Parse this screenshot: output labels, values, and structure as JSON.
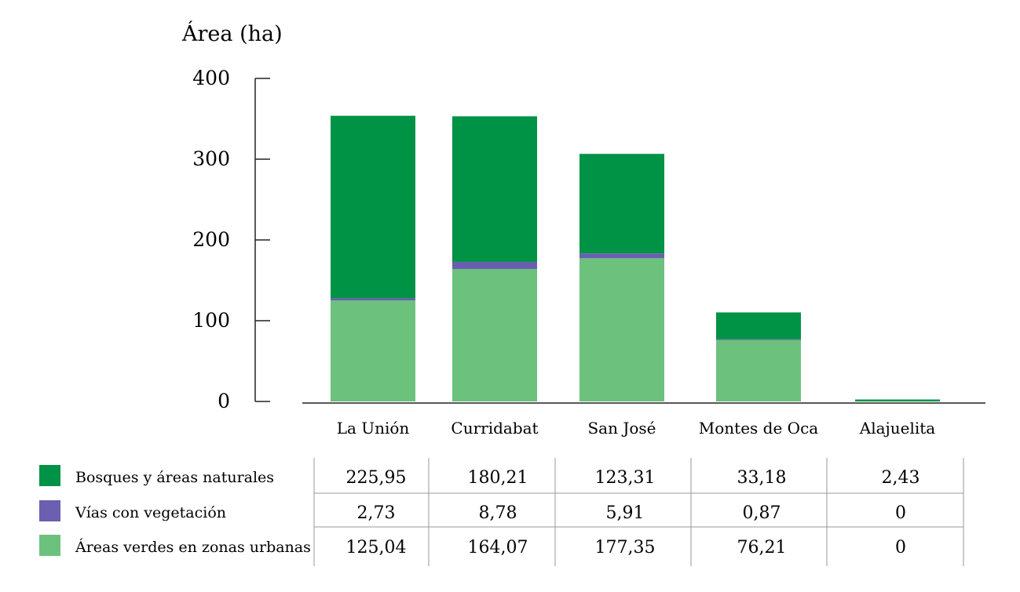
{
  "chart_data": {
    "type": "bar",
    "stacked": true,
    "ylabel": "Área (ha)",
    "ylim": [
      0,
      400
    ],
    "yticks": [
      "0",
      "100",
      "200",
      "300",
      "400"
    ],
    "ytick_values": [
      0,
      100,
      200,
      300,
      400
    ],
    "grid": false,
    "categories": [
      "La Unión",
      "Curridabat",
      "San José",
      "Montes de Oca",
      "Alajuelita"
    ],
    "series": [
      {
        "name": "Áreas verdes en zonas urbanas",
        "color": "#6cc17d",
        "values": [
          125.04,
          164.07,
          177.35,
          76.21,
          0
        ],
        "labels": [
          "125,04",
          "164,07",
          "177,35",
          "76,21",
          "0"
        ]
      },
      {
        "name": "Vías con vegetación",
        "color": "#6a5fb0",
        "values": [
          2.73,
          8.78,
          5.91,
          0.87,
          0
        ],
        "labels": [
          "2,73",
          "8,78",
          "5,91",
          "0,87",
          "0"
        ]
      },
      {
        "name": "Bosques y áreas naturales",
        "color": "#009245",
        "values": [
          225.95,
          180.21,
          123.31,
          33.18,
          2.43
        ],
        "labels": [
          "225,95",
          "180,21",
          "123,31",
          "33,18",
          "2,43"
        ]
      }
    ],
    "table_order": [
      2,
      1,
      0
    ],
    "legend_placement": "bottom-left table"
  }
}
